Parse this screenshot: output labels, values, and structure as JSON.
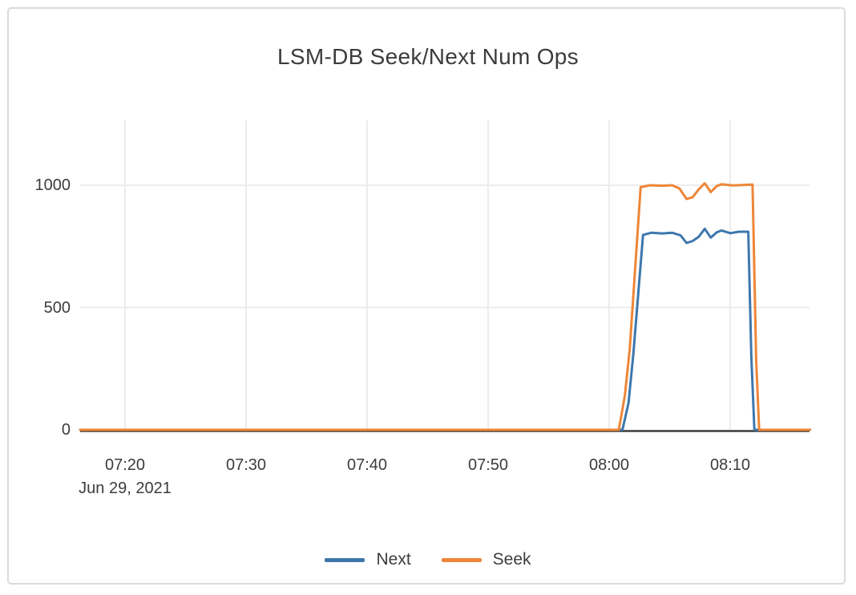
{
  "chart_data": {
    "type": "line",
    "title": "LSM-DB Seek/Next Num Ops",
    "x_axis": {
      "kind": "time",
      "date_label": "Jun 29, 2021",
      "ticks": [
        {
          "label": "07:20",
          "t": 20
        },
        {
          "label": "07:30",
          "t": 30
        },
        {
          "label": "07:40",
          "t": 40
        },
        {
          "label": "07:50",
          "t": 50
        },
        {
          "label": "08:00",
          "t": 60
        },
        {
          "label": "08:10",
          "t": 70
        }
      ],
      "t_unit": "minutes after 07:00 on Jun 29, 2021",
      "range_t": [
        16.3,
        76.6
      ]
    },
    "y_axis": {
      "ticks": [
        {
          "label": "0",
          "v": 0
        },
        {
          "label": "500",
          "v": 500
        },
        {
          "label": "1000",
          "v": 1000
        }
      ],
      "range": [
        0,
        1265
      ],
      "grid": true
    },
    "legend": {
      "position": "bottom-center"
    },
    "series": [
      {
        "name": "Next",
        "color": "#3D77AD",
        "points": [
          [
            16.3,
            0
          ],
          [
            61.1,
            0
          ],
          [
            61.6,
            110
          ],
          [
            62.0,
            310
          ],
          [
            62.8,
            797
          ],
          [
            63.5,
            806
          ],
          [
            64.4,
            803
          ],
          [
            65.2,
            806
          ],
          [
            65.9,
            795
          ],
          [
            66.4,
            764
          ],
          [
            66.9,
            772
          ],
          [
            67.4,
            789
          ],
          [
            67.9,
            822
          ],
          [
            68.4,
            786
          ],
          [
            68.9,
            808
          ],
          [
            69.3,
            815
          ],
          [
            70.0,
            804
          ],
          [
            70.7,
            810
          ],
          [
            71.5,
            810
          ],
          [
            71.75,
            300
          ],
          [
            72.0,
            0
          ],
          [
            76.6,
            0
          ]
        ]
      },
      {
        "name": "Seek",
        "color": "#EE8638",
        "points": [
          [
            16.3,
            0
          ],
          [
            60.8,
            0
          ],
          [
            61.3,
            140
          ],
          [
            61.7,
            330
          ],
          [
            62.6,
            992
          ],
          [
            63.4,
            1000
          ],
          [
            64.4,
            998
          ],
          [
            65.2,
            1000
          ],
          [
            65.8,
            987
          ],
          [
            66.4,
            944
          ],
          [
            66.9,
            951
          ],
          [
            67.4,
            983
          ],
          [
            67.9,
            1008
          ],
          [
            68.4,
            972
          ],
          [
            68.9,
            997
          ],
          [
            69.3,
            1004
          ],
          [
            70.2,
            999
          ],
          [
            71.0,
            1001
          ],
          [
            71.85,
            1003
          ],
          [
            72.15,
            280
          ],
          [
            72.4,
            0
          ],
          [
            76.6,
            0
          ]
        ]
      }
    ],
    "colors": {
      "grid": "#ececec",
      "zero_line": "#3a3a3a",
      "text": "#3c3c3c",
      "card_border": "#dbdbdb",
      "background": "#ffffff"
    }
  }
}
